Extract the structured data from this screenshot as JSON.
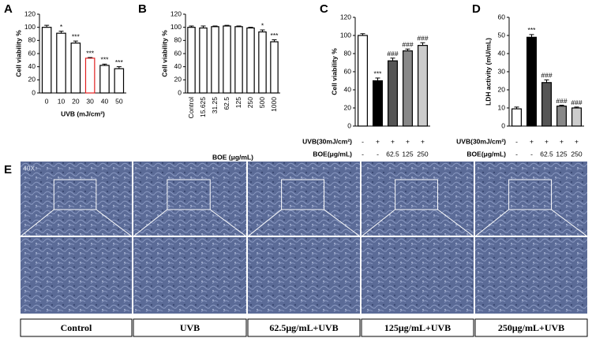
{
  "chart_data": [
    {
      "type": "bar",
      "panel": "A",
      "ylabel": "Cell viability %",
      "xlabel": "UVB (mJ/cm²)",
      "categories": [
        "0",
        "10",
        "20",
        "30",
        "40",
        "50"
      ],
      "values": [
        100,
        91,
        76,
        53,
        42,
        37
      ],
      "errors": [
        3,
        3,
        3,
        1,
        2,
        3
      ],
      "annotations": [
        null,
        "*",
        "***",
        "***",
        "***",
        "***"
      ],
      "fills": [
        "#ffffff",
        "#ffffff",
        "#ffffff",
        "#ffffff",
        "#ffffff",
        "#ffffff"
      ],
      "edges": [
        "#000000",
        "#000000",
        "#000000",
        "#e02020",
        "#000000",
        "#000000"
      ],
      "ylim": [
        0,
        120
      ],
      "yticks": [
        0,
        20,
        40,
        60,
        80,
        100,
        120
      ]
    },
    {
      "type": "bar",
      "panel": "B",
      "ylabel": "Cell viability %",
      "xlabel": "BOE (μg/mL)",
      "categories": [
        "Control",
        "15.625",
        "31.25",
        "62.5",
        "125",
        "250",
        "500",
        "1000"
      ],
      "values": [
        100,
        99,
        101,
        102,
        101,
        99,
        93,
        78
      ],
      "errors": [
        2,
        3,
        1,
        1,
        1,
        1,
        3,
        3
      ],
      "annotations": [
        null,
        null,
        null,
        null,
        null,
        null,
        "*",
        "***"
      ],
      "fills": [
        "#ffffff",
        "#ffffff",
        "#ffffff",
        "#ffffff",
        "#ffffff",
        "#ffffff",
        "#ffffff",
        "#ffffff"
      ],
      "edges": [
        "#000000",
        "#000000",
        "#000000",
        "#000000",
        "#000000",
        "#000000",
        "#000000",
        "#000000"
      ],
      "ylim": [
        0,
        120
      ],
      "yticks": [
        0,
        20,
        40,
        60,
        80,
        100,
        120
      ]
    },
    {
      "type": "bar",
      "panel": "C",
      "ylabel": "Cell viability %",
      "values": [
        100,
        50,
        72,
        83,
        89
      ],
      "errors": [
        2,
        3,
        3,
        2,
        3
      ],
      "annotations": [
        null,
        "***",
        "###",
        "###",
        "###"
      ],
      "fills": [
        "#ffffff",
        "#000000",
        "#555555",
        "#888888",
        "#cccccc"
      ],
      "edges": [
        "#000000",
        "#000000",
        "#000000",
        "#000000",
        "#000000"
      ],
      "rows": [
        {
          "label": "UVB(30mJ/cm²)",
          "values": [
            "-",
            "+",
            "+",
            "+",
            "+"
          ]
        },
        {
          "label": "BOE(μg/mL)",
          "values": [
            "-",
            "-",
            "62.5",
            "125",
            "250"
          ]
        }
      ],
      "ylim": [
        0,
        120
      ],
      "yticks": [
        0,
        20,
        40,
        60,
        80,
        100,
        120
      ]
    },
    {
      "type": "bar",
      "panel": "D",
      "ylabel": "LDH activity (mU/mL)",
      "values": [
        9.5,
        49,
        24,
        11,
        10
      ],
      "errors": [
        1,
        1.5,
        1.5,
        0.5,
        0.5
      ],
      "annotations": [
        null,
        "***",
        "###",
        "###",
        "###"
      ],
      "fills": [
        "#ffffff",
        "#000000",
        "#555555",
        "#888888",
        "#cccccc"
      ],
      "edges": [
        "#000000",
        "#000000",
        "#000000",
        "#000000",
        "#000000"
      ],
      "rows": [
        {
          "label": "UVB(30mJ/cm²)",
          "values": [
            "-",
            "+",
            "+",
            "+",
            "+"
          ]
        },
        {
          "label": "BOE(μg/mL)",
          "values": [
            "-",
            "-",
            "62.5",
            "125",
            "250"
          ]
        }
      ],
      "ylim": [
        0,
        60
      ],
      "yticks": [
        0,
        10,
        20,
        30,
        40,
        50,
        60
      ]
    }
  ],
  "panel_e": {
    "panel": "E",
    "magnification": "40X",
    "labels": [
      "Control",
      "UVB",
      "62.5μg/mL+UVB",
      "125μg/mL+UVB",
      "250μg/mL+UVB"
    ]
  }
}
